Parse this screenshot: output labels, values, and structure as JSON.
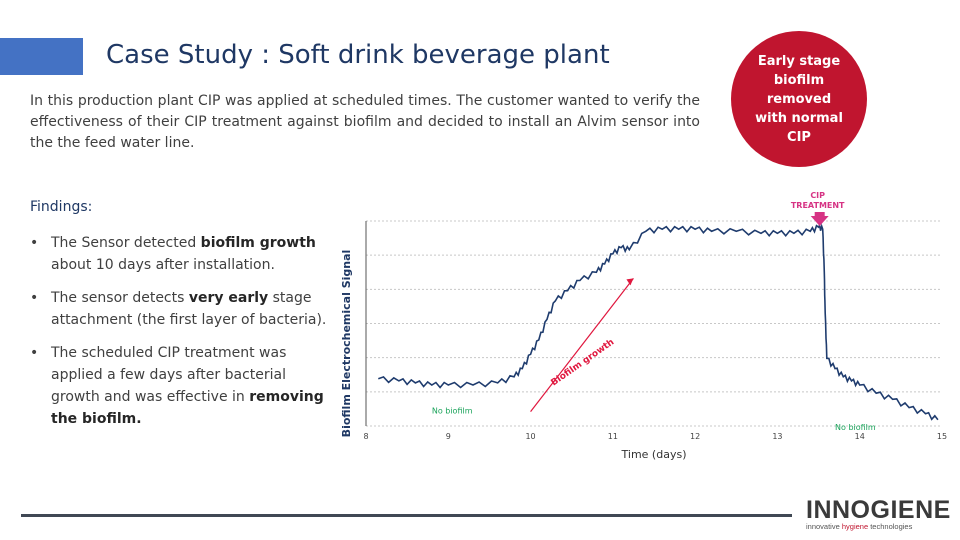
{
  "slide": {
    "title": "Case Study : Soft drink beverage plant",
    "intro": "In this production plant CIP was applied at scheduled times. The customer wanted to verify the effectiveness of their CIP treatment against biofilm and decided to install an Alvim sensor into the the feed water line.",
    "findings_heading": "Findings:",
    "bullet_glyph": "•",
    "bullets": [
      {
        "pre": "The Sensor detected ",
        "bold": "biofilm growth",
        "post": " about 10 days after installation."
      },
      {
        "pre": "The sensor detects ",
        "bold": "very early",
        "post": " stage attachment (the first layer of bacteria)."
      },
      {
        "pre": "The scheduled CIP treatment was applied a few days after bacterial growth and was effective in ",
        "bold": "removing the biofilm.",
        "post": ""
      }
    ],
    "badge": "Early stage biofilm removed with normal CIP",
    "logo": {
      "name": "INNOGIENE",
      "tag_pre": "innovative ",
      "tag_mid": "hygiene",
      "tag_post": " technologies"
    }
  },
  "colors": {
    "accent": "#4472c4",
    "title": "#1f3864",
    "badge": "#c0152f",
    "series": "#1f3c6e",
    "annotation": "#e0173e",
    "treatment": "#d63384",
    "no_biofilm": "#1aa35a"
  },
  "chart_data": {
    "type": "line",
    "xlabel": "Time (days)",
    "ylabel": "Biofilm Electrochemical Signal",
    "xlim": [
      8,
      15
    ],
    "x_ticks": [
      8,
      9,
      10,
      11,
      12,
      13,
      14,
      15
    ],
    "y_range_relative": [
      0,
      1
    ],
    "grid": true,
    "annotations": {
      "cip_line1": "CIP",
      "cip_line2": "TREATMENT",
      "no_biofilm_before": "No biofilm",
      "biofilm_growth": "Biofilm growth",
      "no_biofilm_after": "No biofilm"
    },
    "cip_treatment_day": 13.55,
    "series": [
      {
        "points": [
          [
            8.15,
            0.23
          ],
          [
            8.4,
            0.22
          ],
          [
            8.6,
            0.21
          ],
          [
            8.8,
            0.2
          ],
          [
            9.0,
            0.2
          ],
          [
            9.3,
            0.2
          ],
          [
            9.6,
            0.21
          ],
          [
            9.8,
            0.24
          ],
          [
            9.9,
            0.28
          ],
          [
            10.0,
            0.35
          ],
          [
            10.1,
            0.42
          ],
          [
            10.2,
            0.52
          ],
          [
            10.3,
            0.61
          ],
          [
            10.45,
            0.66
          ],
          [
            10.6,
            0.71
          ],
          [
            10.8,
            0.75
          ],
          [
            10.9,
            0.79
          ],
          [
            11.0,
            0.84
          ],
          [
            11.1,
            0.87
          ],
          [
            11.2,
            0.86
          ],
          [
            11.4,
            0.95
          ],
          [
            11.6,
            0.96
          ],
          [
            11.8,
            0.96
          ],
          [
            12.0,
            0.96
          ],
          [
            12.2,
            0.95
          ],
          [
            12.5,
            0.95
          ],
          [
            12.8,
            0.94
          ],
          [
            13.0,
            0.94
          ],
          [
            13.2,
            0.94
          ],
          [
            13.4,
            0.95
          ],
          [
            13.5,
            0.97
          ],
          [
            13.55,
            0.96
          ],
          [
            13.57,
            0.75
          ],
          [
            13.58,
            0.55
          ],
          [
            13.6,
            0.33
          ],
          [
            13.7,
            0.28
          ],
          [
            13.8,
            0.24
          ],
          [
            13.9,
            0.22
          ],
          [
            14.0,
            0.2
          ],
          [
            14.2,
            0.16
          ],
          [
            14.4,
            0.13
          ],
          [
            14.6,
            0.09
          ],
          [
            14.8,
            0.06
          ],
          [
            14.95,
            0.03
          ]
        ]
      }
    ]
  }
}
